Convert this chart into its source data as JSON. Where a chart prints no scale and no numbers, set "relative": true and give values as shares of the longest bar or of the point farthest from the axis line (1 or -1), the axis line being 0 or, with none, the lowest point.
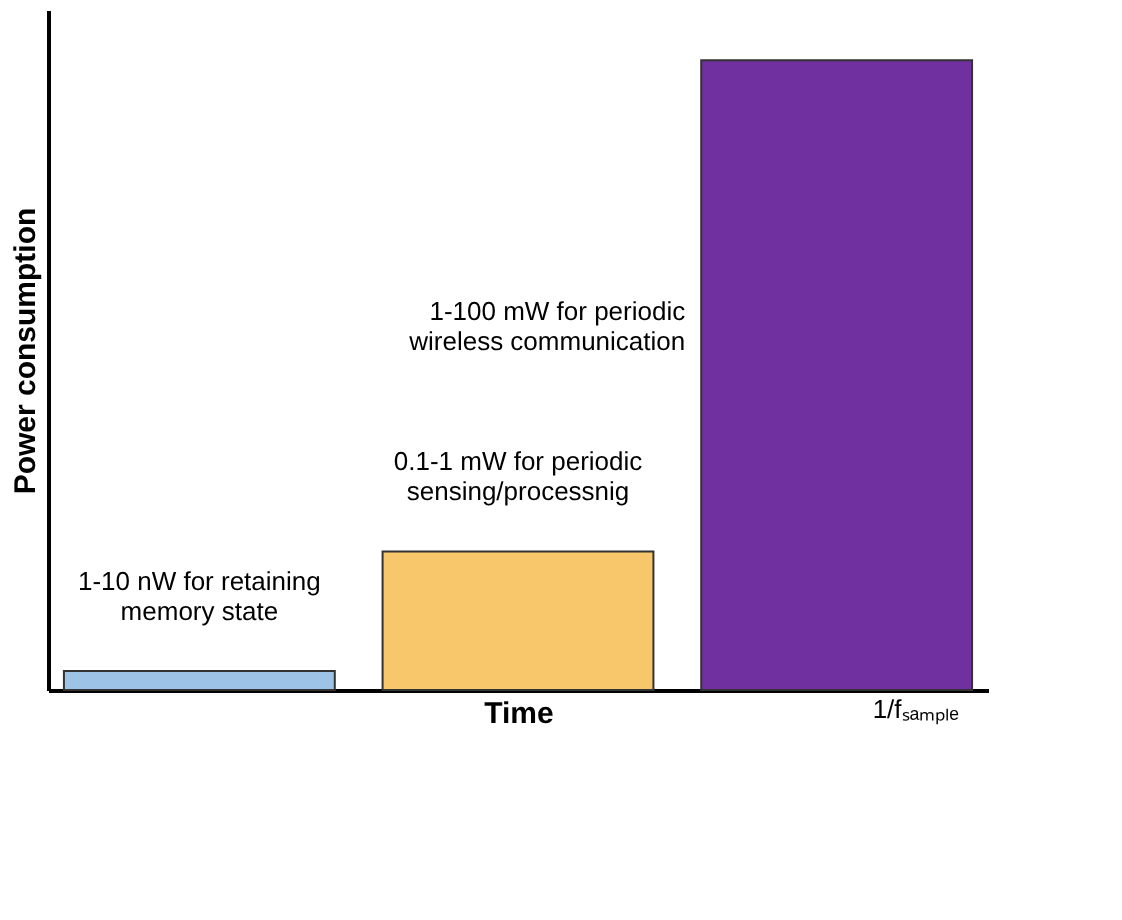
{
  "chart_data": {
    "type": "bar",
    "relative": true,
    "xlabel": "Time",
    "ylabel": "Power consumption",
    "categories": [
      null,
      null,
      null
    ],
    "values": [
      0.03,
      0.22,
      1
    ],
    "colors": [
      "#9dc3e6",
      "#f8c66b",
      "#7030a0"
    ],
    "annotations": [
      "1-10 nW for retaining\nmemory state",
      "0.1-1 mW for periodic\nsensing/processnig",
      "1-100 mW for periodic\nwireless communication",
      "1/fₛₐₘₚₗₑ"
    ]
  }
}
